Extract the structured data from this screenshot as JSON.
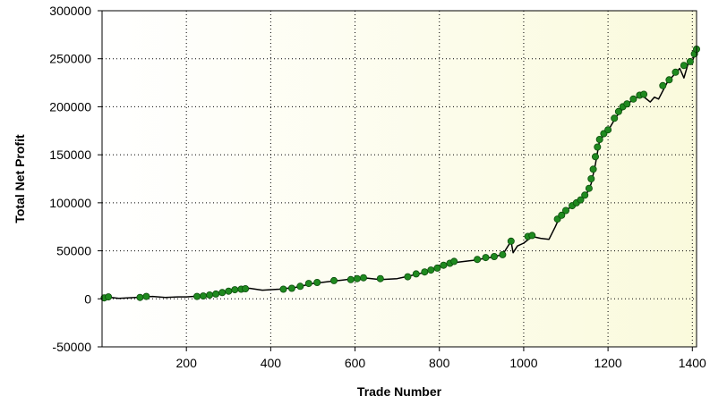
{
  "chart_data": {
    "type": "line",
    "title": "",
    "xlabel": "Trade Number",
    "ylabel": "Total Net Profit",
    "xlim": [
      0,
      1410
    ],
    "ylim": [
      -50000,
      300000
    ],
    "x_ticks": [
      200,
      400,
      600,
      800,
      1000,
      1200,
      1400
    ],
    "y_ticks": [
      -50000,
      0,
      50000,
      100000,
      150000,
      200000,
      250000,
      300000
    ],
    "x_tick_labels": [
      "200",
      "400",
      "600",
      "800",
      "1000",
      "1200",
      "1400"
    ],
    "y_tick_labels": [
      "-50000",
      "0",
      "50000",
      "100000",
      "150000",
      "200000",
      "250000",
      "300000"
    ],
    "grid": true,
    "legend": "none",
    "colors": {
      "line": "#000000",
      "marker_fill": "#1f8a1f",
      "marker_stroke": "#0b4d0b",
      "background_left": "#ffffff",
      "background_right": "#fafadc"
    },
    "series": [
      {
        "x": [
          0,
          20,
          40,
          60,
          80,
          100,
          120,
          150,
          180,
          200,
          230,
          260,
          290,
          320,
          350,
          380,
          420,
          460,
          500,
          540,
          580,
          620,
          660,
          700,
          720,
          760,
          800,
          840,
          880,
          920,
          950,
          970,
          975,
          985,
          1000,
          1020,
          1040,
          1060,
          1075,
          1085,
          1100,
          1120,
          1140,
          1150,
          1160,
          1170,
          1180,
          1200,
          1220,
          1240,
          1260,
          1280,
          1300,
          1310,
          1320,
          1340,
          1360,
          1370,
          1380,
          1390,
          1400,
          1410
        ],
        "y": [
          0,
          1500,
          500,
          1000,
          1500,
          2000,
          2500,
          1500,
          2000,
          2000,
          3000,
          5000,
          8000,
          10000,
          11000,
          9000,
          10000,
          12000,
          16000,
          18000,
          20000,
          22000,
          20000,
          21000,
          23000,
          27000,
          33000,
          38000,
          40000,
          43000,
          46000,
          60000,
          48000,
          55000,
          58000,
          65000,
          63000,
          62000,
          75000,
          85000,
          92000,
          98000,
          105000,
          110000,
          120000,
          140000,
          165000,
          175000,
          190000,
          200000,
          208000,
          212000,
          205000,
          210000,
          208000,
          225000,
          235000,
          240000,
          230000,
          245000,
          248000,
          258000
        ],
        "markers": [
          [
            5,
            1000
          ],
          [
            15,
            2000
          ],
          [
            90,
            1500
          ],
          [
            105,
            2500
          ],
          [
            225,
            2500
          ],
          [
            240,
            3000
          ],
          [
            255,
            4000
          ],
          [
            270,
            5000
          ],
          [
            285,
            6500
          ],
          [
            300,
            8000
          ],
          [
            315,
            9500
          ],
          [
            330,
            10000
          ],
          [
            340,
            10500
          ],
          [
            430,
            10000
          ],
          [
            450,
            11000
          ],
          [
            470,
            13000
          ],
          [
            490,
            16000
          ],
          [
            510,
            17000
          ],
          [
            550,
            19000
          ],
          [
            590,
            20000
          ],
          [
            605,
            21000
          ],
          [
            620,
            22000
          ],
          [
            660,
            21000
          ],
          [
            725,
            23000
          ],
          [
            745,
            26000
          ],
          [
            765,
            28000
          ],
          [
            780,
            30000
          ],
          [
            795,
            32000
          ],
          [
            810,
            35000
          ],
          [
            825,
            37000
          ],
          [
            835,
            39000
          ],
          [
            890,
            41000
          ],
          [
            910,
            43000
          ],
          [
            930,
            44000
          ],
          [
            950,
            46000
          ],
          [
            970,
            60000
          ],
          [
            1010,
            65000
          ],
          [
            1020,
            66000
          ],
          [
            1080,
            83000
          ],
          [
            1090,
            87000
          ],
          [
            1100,
            92000
          ],
          [
            1115,
            97000
          ],
          [
            1125,
            100000
          ],
          [
            1135,
            103000
          ],
          [
            1145,
            108000
          ],
          [
            1155,
            115000
          ],
          [
            1160,
            125000
          ],
          [
            1165,
            135000
          ],
          [
            1170,
            148000
          ],
          [
            1175,
            158000
          ],
          [
            1180,
            166000
          ],
          [
            1190,
            172000
          ],
          [
            1200,
            176000
          ],
          [
            1215,
            188000
          ],
          [
            1225,
            195000
          ],
          [
            1235,
            200000
          ],
          [
            1245,
            203000
          ],
          [
            1260,
            208000
          ],
          [
            1275,
            212000
          ],
          [
            1285,
            213000
          ],
          [
            1330,
            222000
          ],
          [
            1345,
            228000
          ],
          [
            1360,
            236000
          ],
          [
            1380,
            243000
          ],
          [
            1395,
            247000
          ],
          [
            1405,
            255000
          ],
          [
            1410,
            260000
          ]
        ]
      }
    ]
  }
}
